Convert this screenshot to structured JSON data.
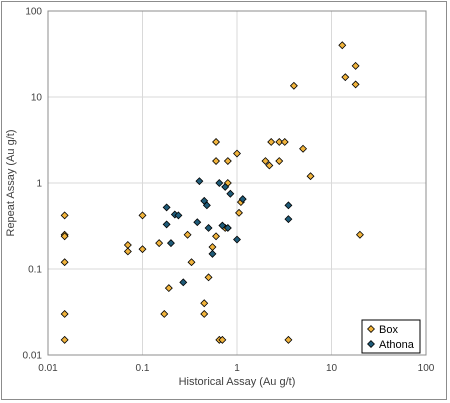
{
  "chart_data": {
    "type": "scatter",
    "title": "",
    "xlabel": "Historical Assay (Au g/t)",
    "ylabel": "Repeat Assay (Au g/t)",
    "xscale": "log",
    "yscale": "log",
    "xlim": [
      0.01,
      100
    ],
    "ylim": [
      0.01,
      100
    ],
    "x_ticks": [
      "0.01",
      "0.1",
      "1",
      "10",
      "100"
    ],
    "y_ticks": [
      "0.01",
      "0.1",
      "1",
      "10",
      "100"
    ],
    "grid": true,
    "legend_position": "bottom-right",
    "marker": "diamond",
    "colors": {
      "Box": "#f0b33c",
      "Athona": "#1f5b78",
      "marker_edge": "#000000",
      "grid": "#d9d9d9",
      "axis": "#8c8c8c"
    },
    "series": [
      {
        "name": "Box",
        "points": [
          [
            0.015,
            0.42
          ],
          [
            0.015,
            0.25
          ],
          [
            0.015,
            0.24
          ],
          [
            0.015,
            0.12
          ],
          [
            0.015,
            0.03
          ],
          [
            0.015,
            0.015
          ],
          [
            0.07,
            0.19
          ],
          [
            0.07,
            0.16
          ],
          [
            0.1,
            0.42
          ],
          [
            0.1,
            0.17
          ],
          [
            0.15,
            0.2
          ],
          [
            0.17,
            0.03
          ],
          [
            0.19,
            0.06
          ],
          [
            0.3,
            0.25
          ],
          [
            0.33,
            0.12
          ],
          [
            0.45,
            0.04
          ],
          [
            0.45,
            0.03
          ],
          [
            0.5,
            0.08
          ],
          [
            0.55,
            0.18
          ],
          [
            0.6,
            0.24
          ],
          [
            0.6,
            3.0
          ],
          [
            0.6,
            1.8
          ],
          [
            0.65,
            0.015
          ],
          [
            0.7,
            0.015
          ],
          [
            0.75,
            0.3
          ],
          [
            0.8,
            1.0
          ],
          [
            0.8,
            1.8
          ],
          [
            1.0,
            2.2
          ],
          [
            1.05,
            0.45
          ],
          [
            1.1,
            0.6
          ],
          [
            2.0,
            1.8
          ],
          [
            2.2,
            1.6
          ],
          [
            2.3,
            3.0
          ],
          [
            2.8,
            3.0
          ],
          [
            2.8,
            1.8
          ],
          [
            3.2,
            3.0
          ],
          [
            3.5,
            0.015
          ],
          [
            4.0,
            13.5
          ],
          [
            5.0,
            2.5
          ],
          [
            6.0,
            1.2
          ],
          [
            13.0,
            40.0
          ],
          [
            14.0,
            17.0
          ],
          [
            18.0,
            23.0
          ],
          [
            18.0,
            14.0
          ],
          [
            20.0,
            0.25
          ]
        ]
      },
      {
        "name": "Athona",
        "points": [
          [
            0.18,
            0.52
          ],
          [
            0.18,
            0.33
          ],
          [
            0.2,
            0.2
          ],
          [
            0.22,
            0.43
          ],
          [
            0.24,
            0.42
          ],
          [
            0.27,
            0.07
          ],
          [
            0.38,
            0.35
          ],
          [
            0.4,
            1.05
          ],
          [
            0.45,
            0.62
          ],
          [
            0.48,
            0.55
          ],
          [
            0.5,
            0.3
          ],
          [
            0.55,
            0.15
          ],
          [
            0.65,
            1.0
          ],
          [
            0.7,
            0.32
          ],
          [
            0.75,
            0.9
          ],
          [
            0.8,
            0.3
          ],
          [
            0.85,
            0.75
          ],
          [
            1.0,
            0.22
          ],
          [
            1.15,
            0.65
          ],
          [
            3.5,
            0.55
          ],
          [
            3.5,
            0.38
          ]
        ]
      }
    ]
  }
}
